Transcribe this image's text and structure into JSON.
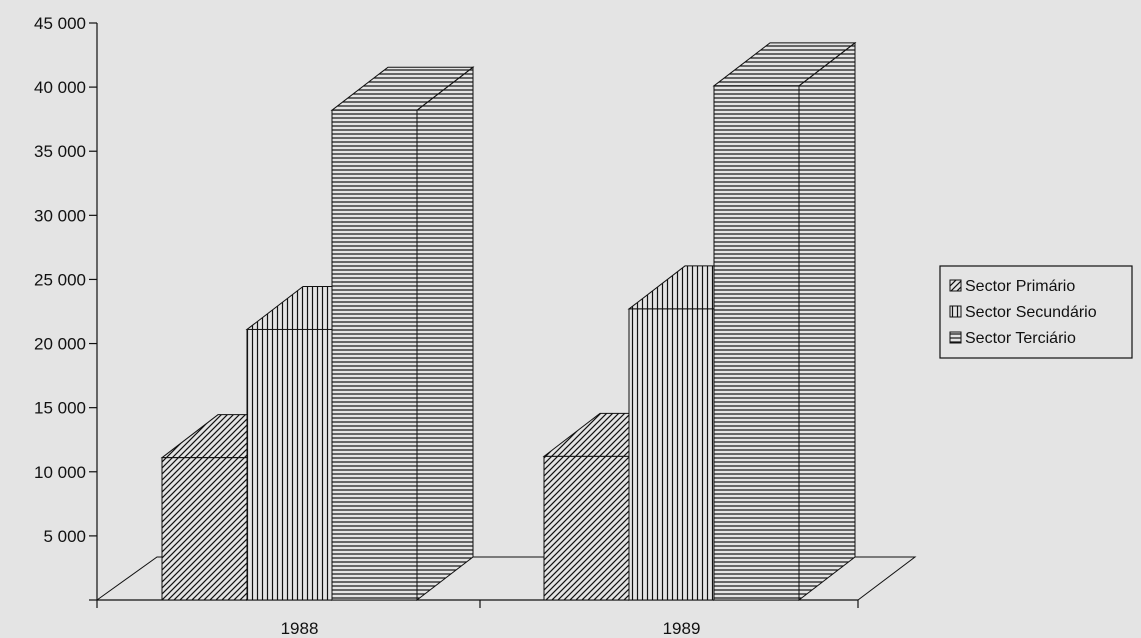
{
  "chart_data": {
    "type": "bar",
    "title": "",
    "xlabel": "",
    "ylabel": "",
    "categories": [
      "1988",
      "1989"
    ],
    "series": [
      {
        "name": "Sector Primário",
        "values": [
          11100,
          11200
        ]
      },
      {
        "name": "Sector Secundário",
        "values": [
          21100,
          22700
        ]
      },
      {
        "name": "Sector Terciário",
        "values": [
          38200,
          40100
        ]
      }
    ],
    "ylim": [
      0,
      45000
    ],
    "y_ticks": [
      {
        "value": 5000,
        "label": "5 000"
      },
      {
        "value": 10000,
        "label": "10 000"
      },
      {
        "value": 15000,
        "label": "15 000"
      },
      {
        "value": 20000,
        "label": "20 000"
      },
      {
        "value": 25000,
        "label": "25 000"
      },
      {
        "value": 30000,
        "label": "30 000"
      },
      {
        "value": 35000,
        "label": "35 000"
      },
      {
        "value": 40000,
        "label": "40 000"
      },
      {
        "value": 45000,
        "label": "45 000"
      }
    ],
    "grid": false,
    "legend_position": "right",
    "style": "3d-hatched-columns"
  }
}
